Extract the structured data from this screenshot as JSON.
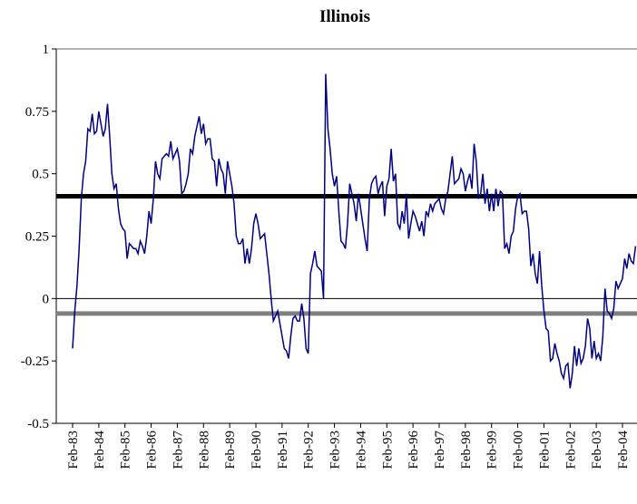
{
  "chart_data": {
    "type": "line",
    "title": "Illinois",
    "categories": [
      "Feb-83",
      null,
      null,
      null,
      null,
      null,
      null,
      null,
      null,
      null,
      null,
      null,
      "Feb-84",
      null,
      null,
      null,
      null,
      null,
      null,
      null,
      null,
      null,
      null,
      null,
      "Feb-85",
      null,
      null,
      null,
      null,
      null,
      null,
      null,
      null,
      null,
      null,
      null,
      "Feb-86",
      null,
      null,
      null,
      null,
      null,
      null,
      null,
      null,
      null,
      null,
      null,
      "Feb-87",
      null,
      null,
      null,
      null,
      null,
      null,
      null,
      null,
      null,
      null,
      null,
      "Feb-88",
      null,
      null,
      null,
      null,
      null,
      null,
      null,
      null,
      null,
      null,
      null,
      "Feb-89",
      null,
      null,
      null,
      null,
      null,
      null,
      null,
      null,
      null,
      null,
      null,
      "Feb-90",
      null,
      null,
      null,
      null,
      null,
      null,
      null,
      null,
      null,
      null,
      null,
      "Feb-91",
      null,
      null,
      null,
      null,
      null,
      null,
      null,
      null,
      null,
      null,
      null,
      "Feb-92",
      null,
      null,
      null,
      null,
      null,
      null,
      null,
      null,
      null,
      null,
      null,
      "Feb-93",
      null,
      null,
      null,
      null,
      null,
      null,
      null,
      null,
      null,
      null,
      null,
      "Feb-94",
      null,
      null,
      null,
      null,
      null,
      null,
      null,
      null,
      null,
      null,
      null,
      "Feb-95",
      null,
      null,
      null,
      null,
      null,
      null,
      null,
      null,
      null,
      null,
      null,
      "Feb-96",
      null,
      null,
      null,
      null,
      null,
      null,
      null,
      null,
      null,
      null,
      null,
      "Feb-97",
      null,
      null,
      null,
      null,
      null,
      null,
      null,
      null,
      null,
      null,
      null,
      "Feb-98",
      null,
      null,
      null,
      null,
      null,
      null,
      null,
      null,
      null,
      null,
      null,
      "Feb-99",
      null,
      null,
      null,
      null,
      null,
      null,
      null,
      null,
      null,
      null,
      null,
      "Feb-00",
      null,
      null,
      null,
      null,
      null,
      null,
      null,
      null,
      null,
      null,
      null,
      "Feb-01",
      null,
      null,
      null,
      null,
      null,
      null,
      null,
      null,
      null,
      null,
      null,
      "Feb-02",
      null,
      null,
      null,
      null,
      null,
      null,
      null,
      null,
      null,
      null,
      null,
      "Feb-03",
      null,
      null,
      null,
      null,
      null,
      null,
      null,
      null,
      null,
      null,
      null,
      "Feb-04",
      null,
      null,
      null,
      null,
      null,
      null
    ],
    "series": [
      {
        "color": "#000080",
        "values": [
          -0.2,
          -0.05,
          0.05,
          0.2,
          0.4,
          0.5,
          0.55,
          0.68,
          0.67,
          0.74,
          0.66,
          0.67,
          0.75,
          0.7,
          0.65,
          0.68,
          0.78,
          0.65,
          0.5,
          0.44,
          0.46,
          0.36,
          0.3,
          0.28,
          0.27,
          0.16,
          0.22,
          0.21,
          0.2,
          0.2,
          0.18,
          0.23,
          0.21,
          0.18,
          0.25,
          0.35,
          0.3,
          0.4,
          0.55,
          0.5,
          0.48,
          0.56,
          0.57,
          0.58,
          0.57,
          0.63,
          0.56,
          0.58,
          0.6,
          0.55,
          0.42,
          0.43,
          0.46,
          0.5,
          0.6,
          0.58,
          0.65,
          0.69,
          0.73,
          0.66,
          0.7,
          0.62,
          0.64,
          0.64,
          0.56,
          0.55,
          0.45,
          0.56,
          0.52,
          0.5,
          0.42,
          0.55,
          0.5,
          0.45,
          0.38,
          0.25,
          0.22,
          0.22,
          0.24,
          0.14,
          0.2,
          0.14,
          0.2,
          0.3,
          0.34,
          0.3,
          0.24,
          0.25,
          0.26,
          0.18,
          0.1,
          0.0,
          -0.09,
          -0.07,
          -0.05,
          -0.1,
          -0.15,
          -0.2,
          -0.21,
          -0.24,
          -0.15,
          -0.08,
          -0.07,
          -0.09,
          -0.09,
          -0.02,
          -0.08,
          -0.2,
          -0.22,
          0.1,
          0.14,
          0.19,
          0.13,
          0.12,
          0.11,
          0.0,
          0.9,
          0.68,
          0.6,
          0.5,
          0.45,
          0.49,
          0.35,
          0.23,
          0.22,
          0.2,
          0.3,
          0.46,
          0.42,
          0.38,
          0.31,
          0.42,
          0.36,
          0.3,
          0.24,
          0.19,
          0.4,
          0.46,
          0.48,
          0.49,
          0.42,
          0.45,
          0.47,
          0.33,
          0.45,
          0.48,
          0.6,
          0.47,
          0.5,
          0.3,
          0.28,
          0.35,
          0.3,
          0.42,
          0.24,
          0.3,
          0.35,
          0.33,
          0.3,
          0.27,
          0.31,
          0.25,
          0.35,
          0.33,
          0.38,
          0.35,
          0.38,
          0.39,
          0.4,
          0.36,
          0.34,
          0.4,
          0.43,
          0.5,
          0.57,
          0.46,
          0.47,
          0.48,
          0.52,
          0.5,
          0.43,
          0.47,
          0.5,
          0.44,
          0.62,
          0.55,
          0.4,
          0.42,
          0.5,
          0.38,
          0.44,
          0.35,
          0.42,
          0.35,
          0.44,
          0.37,
          0.43,
          0.42,
          0.2,
          0.22,
          0.18,
          0.25,
          0.27,
          0.36,
          0.41,
          0.42,
          0.34,
          0.35,
          0.35,
          0.28,
          0.13,
          0.18,
          0.1,
          0.06,
          0.19,
          0.05,
          -0.05,
          -0.12,
          -0.13,
          -0.25,
          -0.24,
          -0.18,
          -0.22,
          -0.25,
          -0.3,
          -0.32,
          -0.27,
          -0.26,
          -0.36,
          -0.3,
          -0.19,
          -0.27,
          -0.2,
          -0.26,
          -0.24,
          -0.19,
          -0.08,
          -0.12,
          -0.24,
          -0.17,
          -0.24,
          -0.22,
          -0.25,
          -0.15,
          0.04,
          -0.05,
          -0.06,
          -0.08,
          -0.04,
          0.07,
          0.04,
          0.06,
          0.08,
          0.16,
          0.12,
          0.18,
          0.15,
          0.14,
          0.21
        ]
      }
    ],
    "reference_lines": [
      {
        "value": 0.41,
        "color": "#000000"
      },
      {
        "value": -0.06,
        "color": "#808080"
      }
    ],
    "ylim": [
      -0.5,
      1
    ],
    "yticks": [
      -0.5,
      -0.25,
      0,
      0.25,
      0.5,
      0.75,
      1
    ]
  }
}
